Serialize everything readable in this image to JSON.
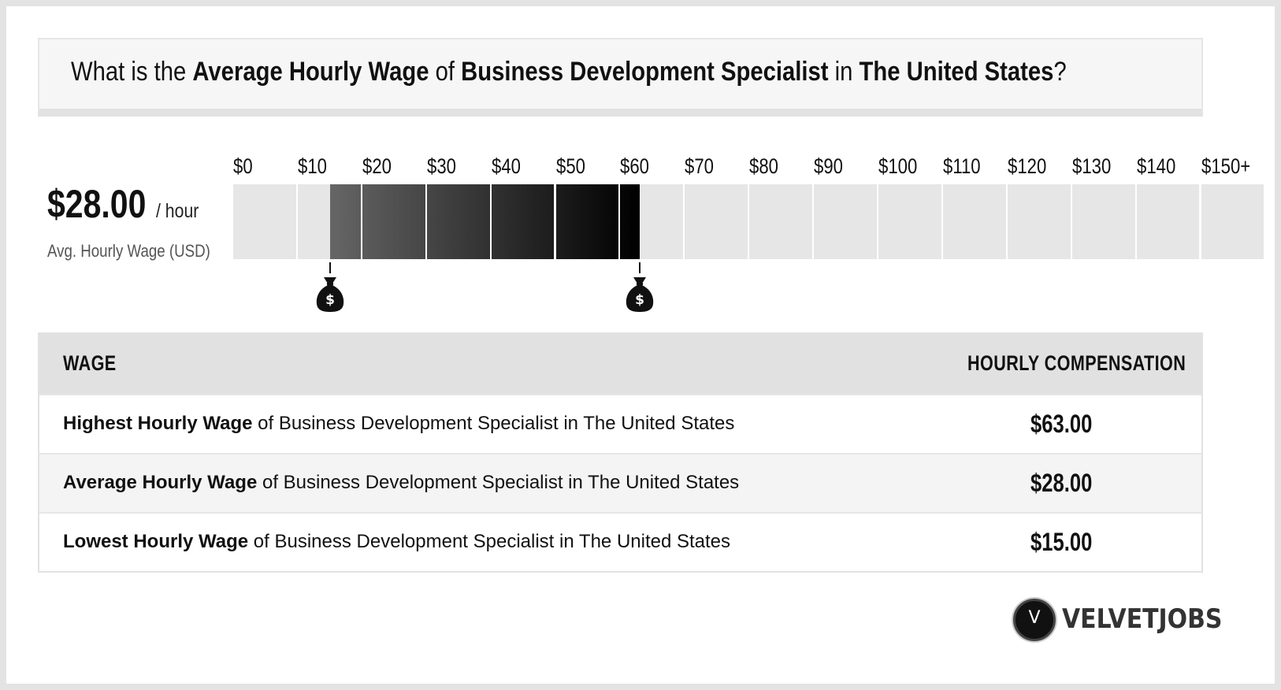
{
  "title": {
    "prefix": "What is the ",
    "metric": "Average Hourly Wage",
    "of": " of ",
    "job": "Business Development Specialist",
    "in": " in ",
    "location": "The United States",
    "suffix": "?"
  },
  "average": {
    "value": "$28.00",
    "unit": "/ hour",
    "caption": "Avg. Hourly Wage (USD)"
  },
  "chart_data": {
    "type": "bar",
    "title": "",
    "xlabel": "",
    "ylabel": "",
    "tick_labels": [
      "$0",
      "$10",
      "$20",
      "$30",
      "$40",
      "$50",
      "$60",
      "$70",
      "$80",
      "$90",
      "$100",
      "$110",
      "$120",
      "$130",
      "$140",
      "$150+"
    ],
    "ticks": [
      0,
      10,
      20,
      30,
      40,
      50,
      60,
      70,
      80,
      90,
      100,
      110,
      120,
      130,
      140,
      150
    ],
    "range": [
      15,
      63
    ],
    "markers": [
      15,
      63
    ],
    "xlim": [
      0,
      150
    ],
    "colors": {
      "empty": "#e6e6e6",
      "fill_start": "#666666",
      "fill_end": "#000000"
    }
  },
  "table": {
    "headers": {
      "wage": "WAGE",
      "comp": "HOURLY COMPENSATION"
    },
    "rows": [
      {
        "bold": "Highest Hourly Wage",
        "rest": " of Business Development Specialist in The United States",
        "value": "$63.00"
      },
      {
        "bold": "Average Hourly Wage",
        "rest": " of Business Development Specialist in The United States",
        "value": "$28.00"
      },
      {
        "bold": "Lowest Hourly Wage",
        "rest": " of Business Development Specialist in The United States",
        "value": "$15.00"
      }
    ]
  },
  "logo": {
    "mark": "V",
    "text": "VELVETJOBS"
  },
  "icons": {
    "marker": "money-bag-icon"
  }
}
